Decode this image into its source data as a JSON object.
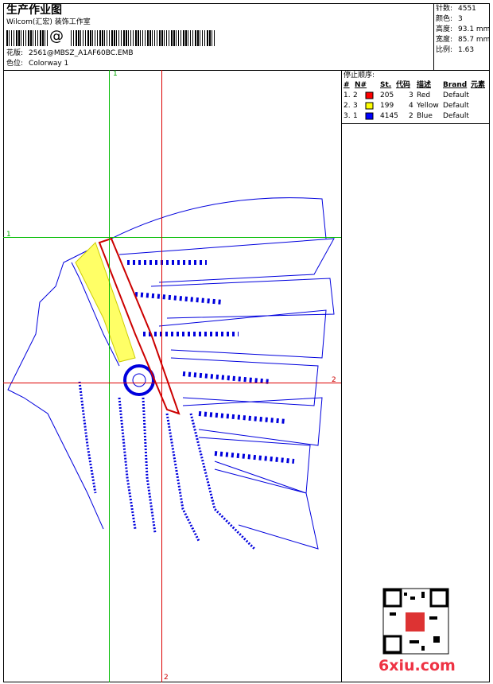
{
  "header": {
    "title": "生产作业图",
    "company": "Wilcom(汇宏) 装饰工作室",
    "barcode_mark": "@",
    "design_label": "花版:",
    "design": "2561@MBSZ_A1AF60BC.EMB",
    "colorway_label": "色位:",
    "colorway": "Colorway 1"
  },
  "info": [
    {
      "label": "针数:",
      "value": "4551"
    },
    {
      "label": "颜色:",
      "value": "3"
    },
    {
      "label": "高度:",
      "value": "93.1 mm"
    },
    {
      "label": "宽度:",
      "value": "85.7 mm"
    },
    {
      "label": "比例:",
      "value": "1.63"
    }
  ],
  "stop_sequence": {
    "title": "停止顺序:",
    "columns": [
      "#",
      "N#",
      "St.",
      "代码",
      "描述",
      "Brand",
      "元素"
    ],
    "rows": [
      [
        "1.",
        "2",
        "205",
        "3",
        "Red",
        "Default"
      ],
      [
        "2.",
        "3",
        "199",
        "4",
        "Yellow",
        "Default"
      ],
      [
        "3.",
        "1",
        "4145",
        "2",
        "Blue",
        "Default"
      ]
    ]
  },
  "axes": {
    "green": "1",
    "red": "2"
  },
  "watermark": "6xiu.com"
}
